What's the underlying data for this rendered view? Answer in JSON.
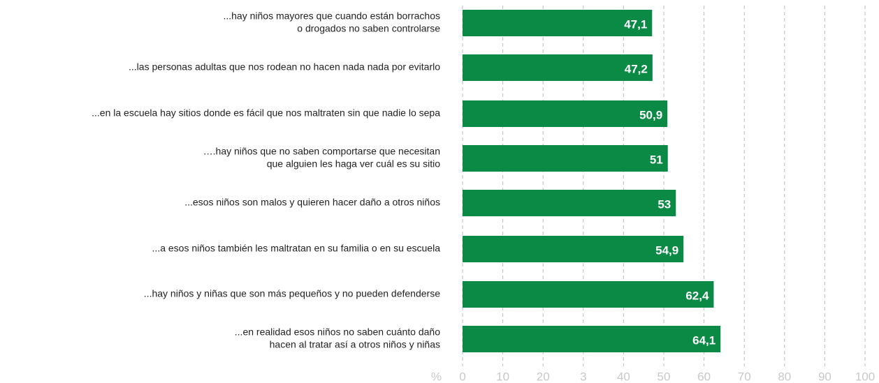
{
  "chart_data": {
    "type": "bar",
    "orientation": "horizontal",
    "categories": [
      [
        "...hay niños mayores que cuando están borrachos",
        "o drogados no saben controlarse"
      ],
      [
        "...las personas adultas que nos rodean no hacen nada nada por evitarlo"
      ],
      [
        "...en la escuela hay sitios donde es fácil que nos maltraten sin que nadie lo sepa"
      ],
      [
        "….hay niños que no saben comportarse que necesitan",
        "que alguien les haga ver cuál es su sitio"
      ],
      [
        "...esos niños son malos y quieren hacer daño a otros niños"
      ],
      [
        "...a esos niños también les maltratan en su familia o en su escuela"
      ],
      [
        "...hay niños y niñas que son más pequeños y no pueden defenderse"
      ],
      [
        "...en realidad esos niños no saben cuánto daño",
        "hacen al tratar así a otros niños y niñas"
      ]
    ],
    "values": [
      47.1,
      47.2,
      50.9,
      51,
      53,
      54.9,
      62.4,
      64.1
    ],
    "value_labels": [
      "47,1",
      "47,2",
      "50,9",
      "51",
      "53",
      "54,9",
      "62,4",
      "64,1"
    ],
    "color": "#0a8a45",
    "x_label": "%",
    "xlim": [
      0,
      100
    ],
    "xticks": [
      0,
      10,
      20,
      {
        "value": 30,
        "label": "3"
      },
      40,
      50,
      60,
      70,
      80,
      90,
      100
    ],
    "grid": true
  }
}
